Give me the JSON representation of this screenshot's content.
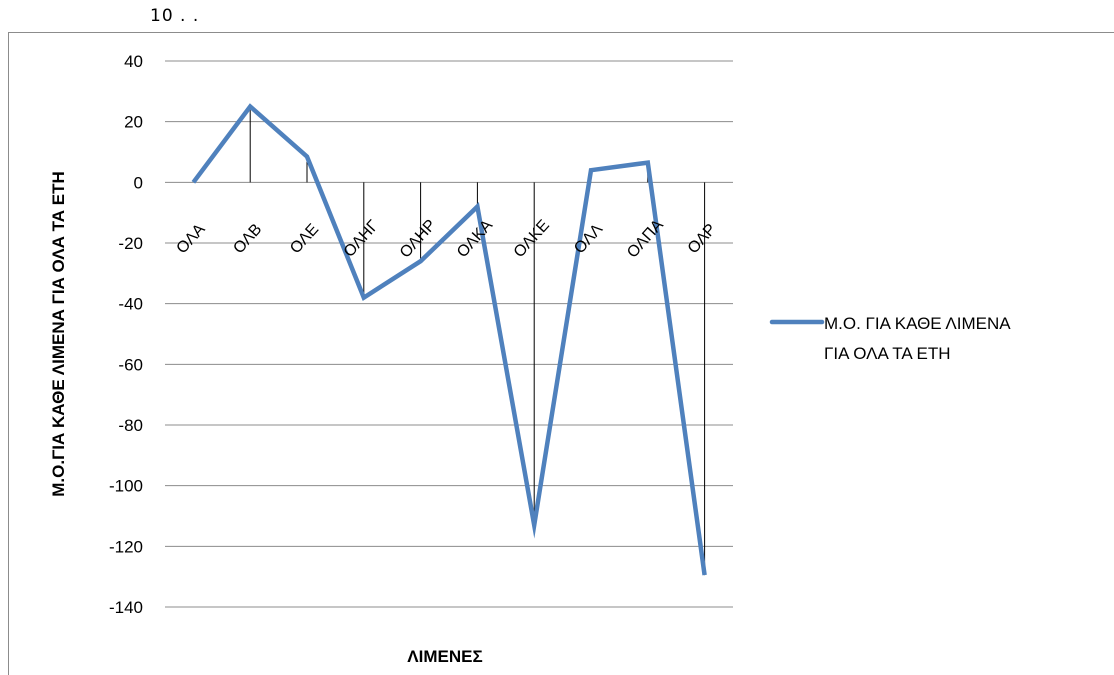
{
  "top_note": "10 . .",
  "chart_data": {
    "type": "line",
    "title": "",
    "xlabel": "ΛΙΜΕΝΕΣ",
    "ylabel": "Μ.Ο.ΓΙΑ ΚΑΘΕ ΛΙΜΕΝΑ ΓΙΑ ΟΛΑ ΤΑ ΕΤΗ",
    "categories": [
      "ΟΛΑ",
      "ΟΛΒ",
      "ΟΛΕ",
      "ΟΛΗΓ",
      "ΟΛΗΡ",
      "ΟΛΚΑ",
      "ΟΛΚΕ",
      "ΟΛΛ",
      "ΟΛΠΑ",
      "ΟΛΡ"
    ],
    "series": [
      {
        "name": "Μ.Ο. ΓΙΑ ΚΑΘΕ ΛΙΜΕΝΑ ΓΙΑ ΟΛΑ ΤΑ ΕΤΗ",
        "values": [
          0,
          25,
          8.5,
          -38,
          -26,
          -8,
          -113,
          4,
          6.5,
          -129.5
        ],
        "color": "#4f81bd"
      }
    ],
    "ylim": [
      -140,
      40
    ],
    "yticks": [
      40,
      20,
      0,
      -20,
      -40,
      -60,
      -80,
      -100,
      -120,
      -140
    ],
    "grid": true,
    "drop_lines": true,
    "legend_position": "right"
  }
}
